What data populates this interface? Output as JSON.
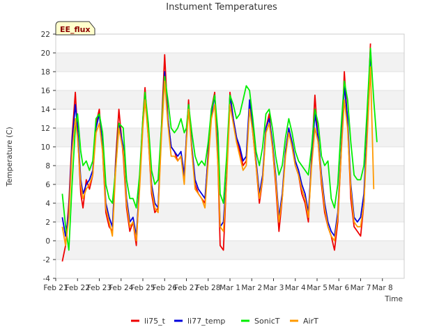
{
  "chart_data": {
    "type": "line",
    "title": "Instument Temperatures",
    "xlabel": "Time",
    "ylabel": "Temperature (C)",
    "badge": "EE_flux",
    "ylim": [
      -4,
      22
    ],
    "yticks": [
      -4,
      -2,
      0,
      2,
      4,
      6,
      8,
      10,
      12,
      14,
      16,
      18,
      20,
      22
    ],
    "xlim": [
      0,
      16
    ],
    "xticks": [
      "Feb 21",
      "Feb 22",
      "Feb 23",
      "Feb 24",
      "Feb 25",
      "Feb 26",
      "Feb 27",
      "Feb 28",
      "Mar 1",
      "Mar 2",
      "Mar 3",
      "Mar 4",
      "Mar 5",
      "Mar 6",
      "Mar 7",
      "Mar 8"
    ],
    "x_unit": "days since Feb 21",
    "grid": "horizontal bands",
    "legend_position": "bottom",
    "series": [
      {
        "name": "li75_t",
        "color": "#ee0000",
        "x": [
          0.3,
          0.45,
          0.6,
          0.75,
          0.9,
          1.0,
          1.15,
          1.25,
          1.4,
          1.55,
          1.7,
          1.85,
          2.0,
          2.15,
          2.3,
          2.45,
          2.6,
          2.75,
          2.9,
          3.1,
          3.25,
          3.4,
          3.55,
          3.7,
          3.85,
          4.0,
          4.1,
          4.25,
          4.4,
          4.55,
          4.7,
          4.85,
          5.0,
          5.15,
          5.3,
          5.45,
          5.6,
          5.75,
          5.9,
          6.0,
          6.1,
          6.25,
          6.4,
          6.55,
          6.7,
          6.85,
          7.0,
          7.15,
          7.3,
          7.45,
          7.55,
          7.7,
          7.85,
          8.0,
          8.15,
          8.3,
          8.45,
          8.6,
          8.75,
          8.9,
          9.05,
          9.2,
          9.35,
          9.5,
          9.65,
          9.8,
          9.95,
          10.1,
          10.25,
          10.4,
          10.55,
          10.7,
          10.85,
          11.0,
          11.15,
          11.3,
          11.45,
          11.6,
          11.75,
          11.9,
          12.05,
          12.2,
          12.35,
          12.5,
          12.65,
          12.8,
          12.95,
          13.1,
          13.25,
          13.4,
          13.55,
          13.7,
          13.85,
          14.0,
          14.15,
          14.3,
          14.45
        ],
        "y": [
          -2.2,
          -0.5,
          4.0,
          11.0,
          15.8,
          11.5,
          5.0,
          3.5,
          6.5,
          5.5,
          7.0,
          12.5,
          14.0,
          9.5,
          3.0,
          1.5,
          1.0,
          8.5,
          14.0,
          9.0,
          3.5,
          1.0,
          2.0,
          -0.5,
          6.5,
          13.0,
          16.3,
          11.0,
          5.0,
          3.0,
          3.5,
          12.0,
          19.8,
          13.0,
          10.0,
          9.5,
          8.5,
          9.0,
          6.5,
          11.0,
          15.0,
          9.5,
          6.0,
          5.0,
          4.5,
          4.0,
          9.5,
          14.0,
          15.8,
          8.0,
          -0.5,
          -1.0,
          7.0,
          15.8,
          13.0,
          11.0,
          9.5,
          8.0,
          8.5,
          14.5,
          11.5,
          8.0,
          4.0,
          6.5,
          12.0,
          13.5,
          10.0,
          6.0,
          1.0,
          4.5,
          9.5,
          12.0,
          10.0,
          8.0,
          7.0,
          5.0,
          4.0,
          2.0,
          9.0,
          15.5,
          10.5,
          6.0,
          3.0,
          1.5,
          0.5,
          -1.0,
          2.0,
          9.0,
          18.0,
          12.5,
          4.5,
          1.5,
          1.0,
          0.5,
          4.0,
          12.0,
          21.0
        ]
      },
      {
        "name": "li77_temp",
        "color": "#0000dd",
        "x": [
          0.3,
          0.45,
          0.6,
          0.75,
          0.9,
          1.0,
          1.15,
          1.25,
          1.4,
          1.55,
          1.7,
          1.85,
          2.0,
          2.15,
          2.3,
          2.45,
          2.6,
          2.75,
          2.9,
          3.1,
          3.25,
          3.4,
          3.55,
          3.7,
          3.85,
          4.0,
          4.1,
          4.25,
          4.4,
          4.55,
          4.7,
          4.85,
          5.0,
          5.15,
          5.3,
          5.45,
          5.6,
          5.75,
          5.9,
          6.0,
          6.1,
          6.25,
          6.4,
          6.55,
          6.7,
          6.85,
          7.0,
          7.15,
          7.3,
          7.45,
          7.55,
          7.7,
          7.85,
          8.0,
          8.15,
          8.3,
          8.45,
          8.6,
          8.75,
          8.9,
          9.05,
          9.2,
          9.35,
          9.5,
          9.65,
          9.8,
          9.95,
          10.1,
          10.25,
          10.4,
          10.55,
          10.7,
          10.85,
          11.0,
          11.15,
          11.3,
          11.45,
          11.6,
          11.75,
          11.9,
          12.05,
          12.2,
          12.35,
          12.5,
          12.65,
          12.8,
          12.95,
          13.1,
          13.25,
          13.4,
          13.55,
          13.7,
          13.85,
          14.0,
          14.15,
          14.3,
          14.45
        ],
        "y": [
          2.5,
          0.5,
          3.0,
          10.5,
          14.5,
          12.0,
          6.5,
          5.0,
          6.0,
          6.5,
          7.5,
          12.0,
          13.5,
          10.0,
          4.0,
          2.5,
          1.5,
          8.0,
          12.5,
          10.0,
          4.5,
          2.0,
          2.5,
          0.5,
          6.0,
          12.5,
          15.5,
          11.5,
          6.0,
          4.0,
          3.5,
          11.5,
          18.0,
          13.0,
          10.0,
          9.5,
          9.0,
          9.5,
          7.0,
          11.0,
          14.5,
          10.0,
          6.5,
          5.5,
          5.0,
          4.5,
          9.0,
          13.5,
          15.5,
          9.0,
          1.5,
          2.0,
          7.0,
          15.5,
          13.0,
          11.0,
          10.0,
          8.5,
          9.0,
          15.0,
          12.0,
          8.5,
          5.0,
          7.0,
          12.0,
          13.0,
          10.5,
          7.0,
          2.5,
          5.0,
          9.5,
          12.0,
          10.5,
          8.5,
          7.5,
          6.0,
          5.0,
          3.0,
          8.5,
          13.5,
          11.0,
          7.0,
          4.0,
          2.0,
          1.0,
          0.5,
          3.0,
          9.5,
          16.5,
          13.0,
          6.0,
          2.5,
          2.0,
          2.5,
          5.0,
          12.0,
          19.5
        ]
      },
      {
        "name": "SonicT",
        "color": "#00ee00",
        "x": [
          0.3,
          0.45,
          0.6,
          0.75,
          0.9,
          1.0,
          1.15,
          1.25,
          1.4,
          1.55,
          1.7,
          1.85,
          2.0,
          2.15,
          2.3,
          2.45,
          2.6,
          2.75,
          2.9,
          3.1,
          3.25,
          3.4,
          3.55,
          3.7,
          3.85,
          4.0,
          4.1,
          4.25,
          4.4,
          4.55,
          4.7,
          4.85,
          5.0,
          5.15,
          5.3,
          5.45,
          5.6,
          5.75,
          5.9,
          6.0,
          6.1,
          6.25,
          6.4,
          6.55,
          6.7,
          6.85,
          7.0,
          7.15,
          7.3,
          7.45,
          7.55,
          7.7,
          7.85,
          8.0,
          8.15,
          8.3,
          8.45,
          8.6,
          8.75,
          8.9,
          9.05,
          9.2,
          9.35,
          9.5,
          9.65,
          9.8,
          9.95,
          10.1,
          10.25,
          10.4,
          10.55,
          10.7,
          10.85,
          11.0,
          11.15,
          11.3,
          11.45,
          11.6,
          11.75,
          11.9,
          12.05,
          12.2,
          12.35,
          12.5,
          12.65,
          12.8,
          12.95,
          13.1,
          13.25,
          13.4,
          13.55,
          13.7,
          13.85,
          14.0,
          14.15,
          14.3,
          14.45,
          14.6,
          14.75
        ],
        "y": [
          5.0,
          1.5,
          -1.0,
          6.0,
          12.0,
          13.5,
          9.5,
          8.0,
          8.5,
          7.5,
          8.5,
          13.0,
          13.5,
          11.5,
          6.0,
          4.5,
          4.0,
          7.5,
          12.5,
          12.0,
          6.5,
          4.5,
          4.5,
          3.5,
          7.0,
          13.0,
          15.8,
          12.5,
          7.5,
          6.0,
          6.5,
          12.0,
          17.5,
          15.0,
          12.0,
          11.5,
          12.0,
          13.0,
          11.5,
          12.0,
          14.5,
          11.5,
          9.0,
          8.0,
          8.5,
          8.0,
          10.5,
          14.0,
          15.5,
          11.5,
          5.0,
          4.0,
          9.0,
          15.5,
          14.5,
          13.0,
          13.5,
          15.0,
          16.5,
          16.0,
          13.0,
          9.5,
          8.0,
          10.0,
          13.5,
          14.0,
          12.0,
          9.0,
          7.0,
          8.0,
          11.0,
          13.0,
          11.5,
          9.5,
          8.5,
          8.0,
          7.5,
          7.0,
          10.0,
          14.0,
          12.5,
          9.0,
          8.0,
          8.5,
          4.5,
          3.5,
          6.0,
          12.0,
          17.0,
          15.0,
          10.5,
          7.0,
          6.5,
          6.5,
          8.0,
          14.0,
          20.5,
          15.0,
          10.5
        ]
      },
      {
        "name": "AirT",
        "color": "#ff9900",
        "x": [
          0.3,
          0.45,
          0.6,
          0.75,
          0.9,
          1.0,
          1.15,
          1.25,
          1.4,
          1.55,
          1.7,
          1.85,
          2.0,
          2.15,
          2.3,
          2.45,
          2.6,
          2.75,
          2.9,
          3.1,
          3.25,
          3.4,
          3.55,
          3.7,
          3.85,
          4.0,
          4.1,
          4.25,
          4.4,
          4.55,
          4.7,
          4.85,
          5.0,
          5.15,
          5.3,
          5.45,
          5.6,
          5.75,
          5.9,
          6.0,
          6.1,
          6.25,
          6.4,
          6.55,
          6.7,
          6.85,
          7.0,
          7.15,
          7.3,
          7.45,
          7.55,
          7.7,
          7.85,
          8.0,
          8.15,
          8.3,
          8.45,
          8.6,
          8.75,
          8.9,
          9.05,
          9.2,
          9.35,
          9.5,
          9.65,
          9.8,
          9.95,
          10.1,
          10.25,
          10.4,
          10.55,
          10.7,
          10.85,
          11.0,
          11.15,
          11.3,
          11.45,
          11.6,
          11.75,
          11.9,
          12.05,
          12.2,
          12.35,
          12.5,
          12.65,
          12.8,
          12.95,
          13.1,
          13.25,
          13.4,
          13.55,
          13.7,
          13.85,
          14.0,
          14.15,
          14.3,
          14.45,
          14.6
        ],
        "y": [
          1.5,
          -0.5,
          2.5,
          9.5,
          13.0,
          11.0,
          6.0,
          4.5,
          5.5,
          6.0,
          7.0,
          11.5,
          12.5,
          9.5,
          3.5,
          2.0,
          0.5,
          7.5,
          12.0,
          9.5,
          4.0,
          1.5,
          2.0,
          0.0,
          5.5,
          12.0,
          15.0,
          11.0,
          5.5,
          3.5,
          3.0,
          11.0,
          17.0,
          12.5,
          9.0,
          9.0,
          8.5,
          9.0,
          6.0,
          10.5,
          14.0,
          9.5,
          5.5,
          5.0,
          4.5,
          3.5,
          8.5,
          13.0,
          14.5,
          8.0,
          1.5,
          1.0,
          6.5,
          14.5,
          12.5,
          10.5,
          9.0,
          7.5,
          8.0,
          14.0,
          11.5,
          8.0,
          4.5,
          6.5,
          11.5,
          12.5,
          10.0,
          6.5,
          2.0,
          4.5,
          9.0,
          11.5,
          10.0,
          8.0,
          7.0,
          5.5,
          4.5,
          2.5,
          8.0,
          12.0,
          10.5,
          6.5,
          3.5,
          1.5,
          0.5,
          0.0,
          2.5,
          9.0,
          15.0,
          12.0,
          5.5,
          2.0,
          1.5,
          1.5,
          4.0,
          11.0,
          18.5,
          5.5
        ]
      }
    ]
  }
}
